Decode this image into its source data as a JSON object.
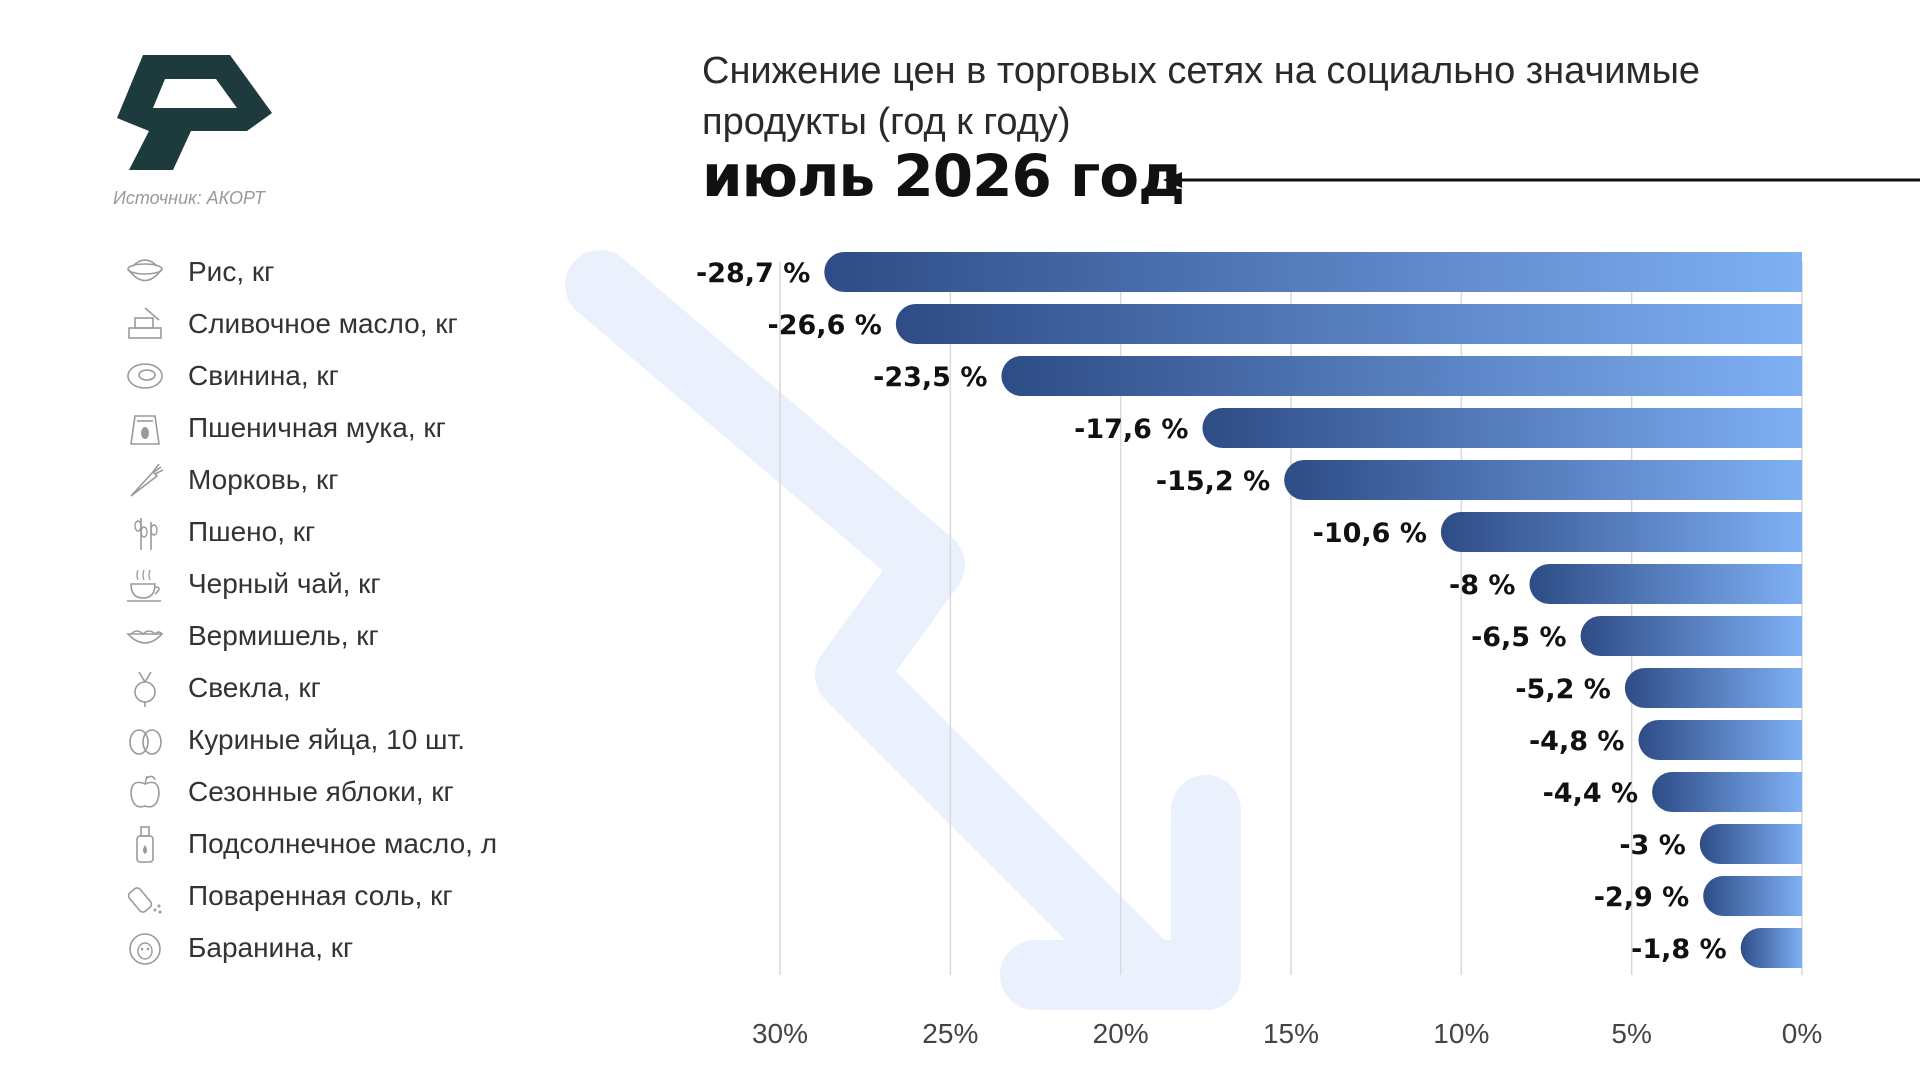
{
  "header": {
    "title": "Снижение цен в торговых сетях на социально значимые продукты (год к году)",
    "period": "июль 2026 год",
    "source": "Источник: АКОРТ"
  },
  "colors": {
    "bar_start": "#2e4c86",
    "bar_end": "#7fb0f5",
    "logo": "#1d3a3c",
    "watermark_arrow": "#eaf1fd"
  },
  "chart_data": {
    "type": "bar",
    "orientation": "horizontal",
    "title": "Снижение цен в торговых сетях на социально значимые продукты (год к году)",
    "subtitle": "июль 2026 год",
    "categories": [
      "Рис, кг",
      "Сливочное масло, кг",
      "Свинина, кг",
      "Пшеничная мука, кг",
      "Морковь, кг",
      "Пшено, кг",
      "Черный чай, кг",
      "Вермишель, кг",
      "Свекла, кг",
      "Куриные яйца, 10 шт.",
      "Сезонные яблоки, кг",
      "Подсолнечное масло, л",
      "Поваренная соль, кг",
      "Баранина, кг"
    ],
    "icons": [
      "rice-bowl-icon",
      "butter-icon",
      "pork-icon",
      "flour-sack-icon",
      "carrot-icon",
      "millet-icon",
      "tea-cup-icon",
      "noodles-icon",
      "beet-icon",
      "eggs-icon",
      "apple-icon",
      "oil-bottle-icon",
      "salt-shaker-icon",
      "sheep-icon"
    ],
    "values": [
      -28.7,
      -26.6,
      -23.5,
      -17.6,
      -15.2,
      -10.6,
      -8,
      -6.5,
      -5.2,
      -4.8,
      -4.4,
      -3,
      -2.9,
      -1.8
    ],
    "value_labels": [
      "-28,7 %",
      "-26,6 %",
      "-23,5 %",
      "-17,6 %",
      "-15,2 %",
      "-10,6 %",
      "-8 %",
      "-6,5 %",
      "-5,2 %",
      "-4,8 %",
      "-4,4 %",
      "-3 %",
      "-2,9 %",
      "-1,8 %"
    ],
    "x_ticks": [
      30,
      25,
      20,
      15,
      10,
      5,
      0
    ],
    "x_tick_labels": [
      "30%",
      "25%",
      "20%",
      "15%",
      "10%",
      "5%",
      "0%"
    ],
    "xlim": [
      30,
      0
    ],
    "grid": "vertical"
  }
}
